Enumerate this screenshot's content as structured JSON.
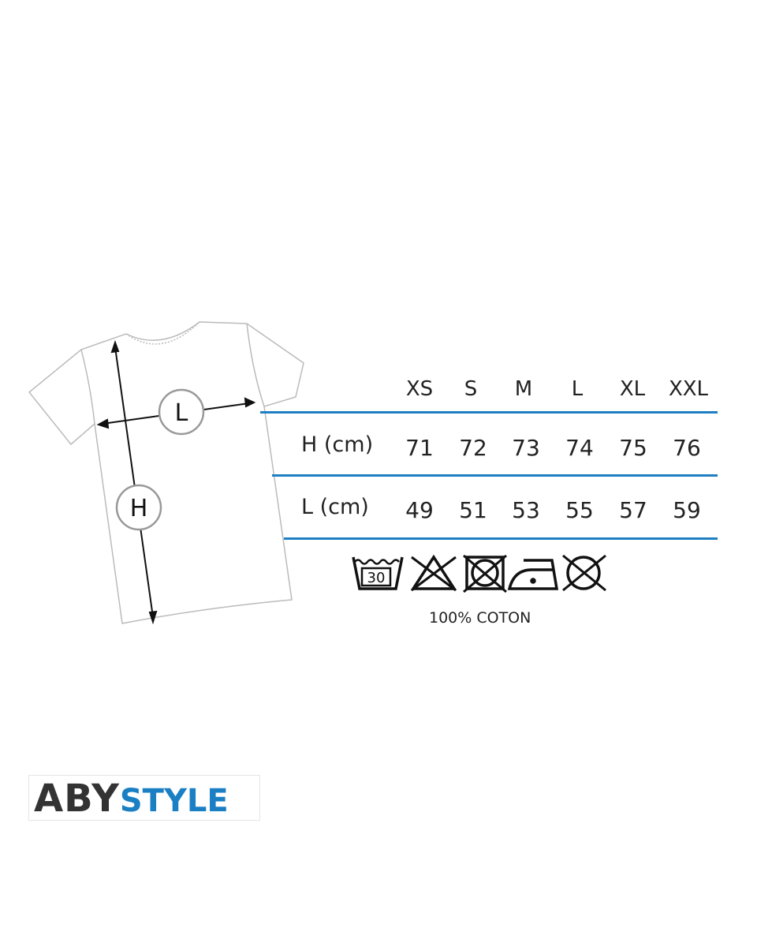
{
  "diagram": {
    "width_marker": "L",
    "height_marker": "H"
  },
  "size_table": {
    "sizes": [
      "XS",
      "S",
      "M",
      "L",
      "XL",
      "XXL"
    ],
    "rows": [
      {
        "label": "H (cm)",
        "values": [
          "71",
          "72",
          "73",
          "74",
          "75",
          "76"
        ]
      },
      {
        "label": "L (cm)",
        "values": [
          "49",
          "51",
          "53",
          "55",
          "57",
          "59"
        ]
      }
    ],
    "rule_color": "#1e7fc2"
  },
  "care": {
    "icons": [
      "wash-30-icon",
      "no-bleach-icon",
      "no-tumble-dry-icon",
      "iron-low-icon",
      "no-dry-clean-icon"
    ],
    "wash_temp": "30",
    "fabric": "100% COTON"
  },
  "logo": {
    "part1": "ABY",
    "part2": "STYLE",
    "brand_color": "#1b7fc4"
  }
}
